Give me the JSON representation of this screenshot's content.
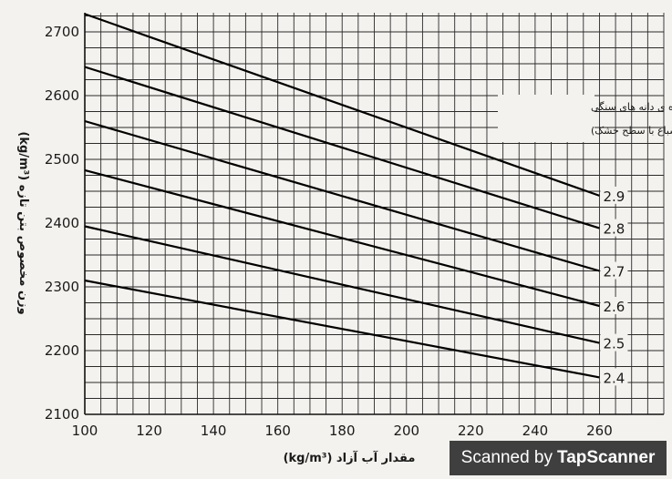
{
  "chart_data": {
    "type": "line",
    "x_ticks": [
      100,
      120,
      140,
      160,
      180,
      200,
      220,
      240,
      260
    ],
    "y_ticks": [
      2100,
      2200,
      2300,
      2400,
      2500,
      2600,
      2700
    ],
    "xlim": [
      100,
      280
    ],
    "ylim": [
      2100,
      2730
    ],
    "xlabel": "مقدار آب آزاد (kg/m³)",
    "ylabel": "وزن مخصوص بتن تازه (kg/m³)",
    "legend_title": [
      "توده ی ویژه ی دانه های سنگی",
      "(درحالت اشباع با سطح خشک)"
    ],
    "grid": true,
    "series": [
      {
        "name": "2.9",
        "x": [
          100,
          260
        ],
        "y": [
          2728,
          2443
        ]
      },
      {
        "name": "2.8",
        "x": [
          100,
          260
        ],
        "y": [
          2645,
          2392
        ]
      },
      {
        "name": "2.7",
        "x": [
          100,
          260
        ],
        "y": [
          2560,
          2325
        ]
      },
      {
        "name": "2.6",
        "x": [
          100,
          260
        ],
        "y": [
          2483,
          2270
        ]
      },
      {
        "name": "2.5",
        "x": [
          100,
          260
        ],
        "y": [
          2395,
          2212
        ]
      },
      {
        "name": "2.4",
        "x": [
          100,
          260
        ],
        "y": [
          2310,
          2158
        ]
      }
    ]
  },
  "watermark": {
    "prefix": "Scanned by",
    "brand": "TapScanner"
  }
}
